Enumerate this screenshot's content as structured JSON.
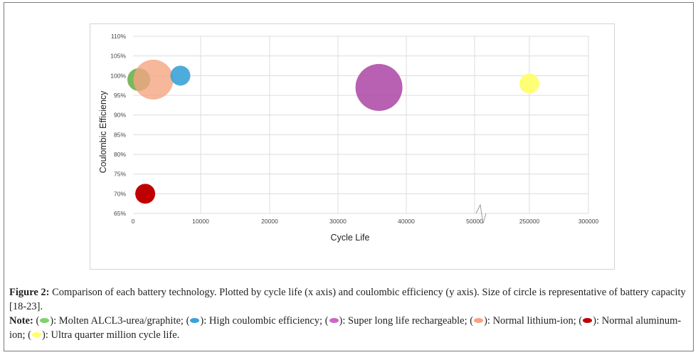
{
  "chart_data": {
    "type": "scatter",
    "xlabel": "Cycle Life",
    "ylabel": "Coulombic Efficiency",
    "x_ticks": [
      "0",
      "10000",
      "20000",
      "30000",
      "40000",
      "50000",
      "250000",
      "300000"
    ],
    "y_ticks": [
      "65%",
      "70%",
      "75%",
      "80%",
      "85%",
      "90%",
      "95%",
      "100%",
      "105%",
      "110%"
    ],
    "x_axis_break": {
      "after": 50000,
      "resumes_at": 250000
    },
    "ylim": [
      65,
      110
    ],
    "grid": true,
    "legend": "none",
    "points": [
      {
        "x": 1000,
        "y": 99,
        "size": "medium",
        "color": "#6ab04c",
        "opacity": 0.9
      },
      {
        "x": 3000,
        "y": 99,
        "size": "large",
        "color": "#f4a582",
        "opacity": 0.8
      },
      {
        "x": 7000,
        "y": 100,
        "size": "small",
        "color": "#3aa3d8",
        "opacity": 0.9
      },
      {
        "x": 1800,
        "y": 70,
        "size": "small",
        "color": "#c00000",
        "opacity": 1
      },
      {
        "x": 36000,
        "y": 97,
        "size": "xlarge",
        "color": "#b04fa8",
        "opacity": 0.9
      },
      {
        "x": 250000,
        "y": 98,
        "size": "small",
        "color": "#ffff66",
        "opacity": 0.9
      }
    ]
  },
  "caption": {
    "figure_label": "Figure 2:",
    "figure_text": " Comparison of each battery technology. Plotted by cycle life (x axis) and coulombic efficiency (y axis). Size of circle is representative of battery capacity [18-23].",
    "note_label": "Note:",
    "legend": [
      {
        "color": "#7dd26e",
        "text": "): Molten ALCL3-urea/graphite; ("
      },
      {
        "color": "#3aa3d8",
        "text": "): High coulombic efficiency; ("
      },
      {
        "color": "#cc66cc",
        "text": "): Super long life rechargeable; ("
      },
      {
        "color": "#f4a582",
        "text": "): Normal lithium-ion; ("
      },
      {
        "color": "#c00000",
        "text": "): Normal aluminum-ion; ("
      },
      {
        "color": "#ffff66",
        "text": "): Ultra quarter million cycle life."
      }
    ]
  }
}
